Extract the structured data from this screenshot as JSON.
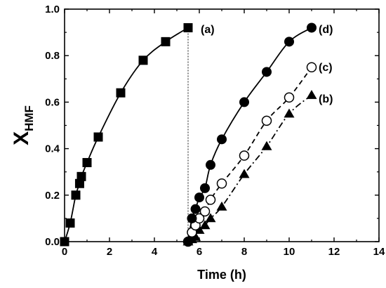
{
  "chart_data": {
    "type": "scatter",
    "xlabel": "Time (h)",
    "ylabel": {
      "main": "X",
      "sub": "HMF"
    },
    "xlim": [
      0,
      14
    ],
    "ylim": [
      0,
      1.0
    ],
    "xticks": [
      "0",
      "2",
      "4",
      "6",
      "8",
      "10",
      "12",
      "14"
    ],
    "yticks": [
      "0.0",
      "0.2",
      "0.4",
      "0.6",
      "0.8",
      "1.0"
    ],
    "grid": false,
    "reference_line": {
      "x": 5.5,
      "style": "dotted"
    },
    "series": [
      {
        "label": "(a)",
        "marker": "square-filled",
        "line": "solid",
        "x": [
          0,
          0.25,
          0.5,
          0.67,
          0.75,
          1.0,
          1.5,
          2.5,
          3.5,
          4.5,
          5.5
        ],
        "y": [
          0.0,
          0.08,
          0.2,
          0.25,
          0.28,
          0.34,
          0.45,
          0.64,
          0.78,
          0.86,
          0.92
        ]
      },
      {
        "label": "(b)",
        "marker": "triangle-filled",
        "line": "dash-dot",
        "x": [
          5.5,
          5.67,
          5.83,
          6.0,
          6.25,
          6.5,
          7.0,
          8.0,
          9.0,
          10.0,
          11.0
        ],
        "y": [
          0.0,
          0.01,
          0.02,
          0.05,
          0.07,
          0.1,
          0.15,
          0.29,
          0.41,
          0.55,
          0.63
        ]
      },
      {
        "label": "(c)",
        "marker": "circle-open",
        "line": "dashed",
        "x": [
          5.5,
          5.67,
          5.83,
          6.0,
          6.25,
          6.5,
          7.0,
          8.0,
          9.0,
          10.0,
          11.0
        ],
        "y": [
          0.0,
          0.04,
          0.07,
          0.1,
          0.13,
          0.18,
          0.25,
          0.37,
          0.52,
          0.62,
          0.75
        ]
      },
      {
        "label": "(d)",
        "marker": "circle-filled",
        "line": "solid",
        "x": [
          5.5,
          5.67,
          5.83,
          6.0,
          6.25,
          6.5,
          7.0,
          8.0,
          9.0,
          10.0,
          11.0
        ],
        "y": [
          0.0,
          0.1,
          0.14,
          0.19,
          0.23,
          0.33,
          0.44,
          0.6,
          0.73,
          0.86,
          0.92
        ]
      }
    ]
  }
}
